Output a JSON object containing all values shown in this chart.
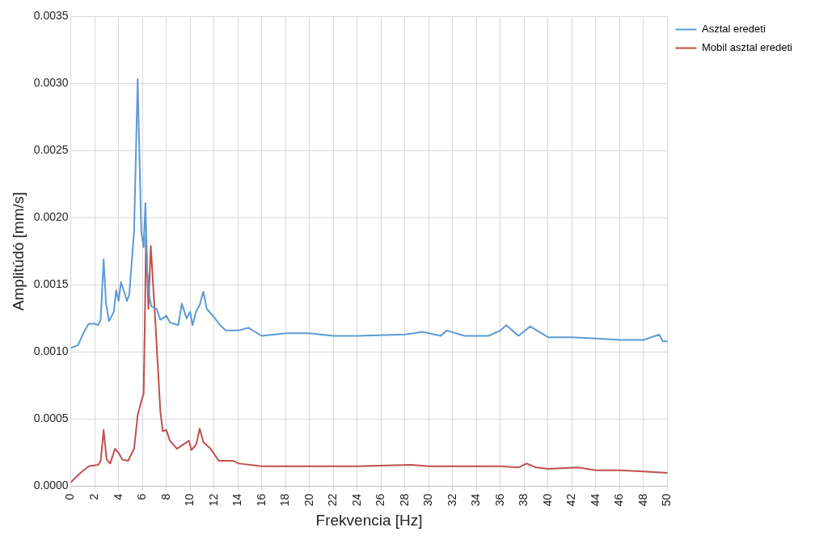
{
  "chart_data": {
    "type": "line",
    "xlabel": "Frekvencia [Hz]",
    "ylabel": "Amplitúdó [mm/s]",
    "xlim": [
      0,
      50
    ],
    "xticks": [
      0,
      2,
      4,
      6,
      8,
      10,
      12,
      14,
      16,
      18,
      20,
      22,
      24,
      26,
      28,
      30,
      32,
      34,
      36,
      38,
      40,
      42,
      44,
      46,
      48,
      50
    ],
    "ylim": [
      0,
      0.0035
    ],
    "yticks": [
      {
        "value": 0,
        "label": "0.0000"
      },
      {
        "value": 0.0005,
        "label": "0.0005"
      },
      {
        "value": 0.001,
        "label": "0.0010"
      },
      {
        "value": 0.0015,
        "label": "0.0015"
      },
      {
        "value": 0.002,
        "label": "0.0020"
      },
      {
        "value": 0.0025,
        "label": "0.0025"
      },
      {
        "value": 0.003,
        "label": "0.0030"
      },
      {
        "value": 0.0035,
        "label": "0.0035"
      }
    ],
    "grid": true,
    "legend": "right",
    "marker": "none",
    "line_style": "solid",
    "series": [
      {
        "name": "Asztal eredeti",
        "color": "#5b9bd5",
        "x": [
          0,
          0.6,
          1.1,
          1.5,
          2.0,
          2.3,
          2.5,
          2.75,
          2.95,
          3.2,
          3.6,
          3.8,
          4.0,
          4.2,
          4.5,
          4.7,
          4.9,
          5.3,
          5.6,
          5.9,
          6.1,
          6.25,
          6.4,
          6.6,
          6.75,
          7.2,
          7.5,
          8.0,
          8.3,
          9.0,
          9.3,
          9.7,
          10.0,
          10.2,
          10.5,
          10.8,
          11.1,
          11.4,
          12.0,
          12.5,
          13.0,
          14.0,
          14.9,
          16.0,
          18.0,
          20.0,
          22.0,
          24.0,
          28.0,
          29.5,
          31.0,
          31.5,
          33.0,
          35.0,
          36.0,
          36.5,
          37.5,
          38.5,
          40.0,
          42.0,
          44.0,
          46.0,
          48.0,
          49.3,
          49.6,
          50.0
        ],
        "values": [
          0.00103,
          0.00105,
          0.00115,
          0.00121,
          0.00121,
          0.0012,
          0.00124,
          0.00169,
          0.00136,
          0.00123,
          0.0013,
          0.00146,
          0.00138,
          0.00152,
          0.00144,
          0.00138,
          0.00143,
          0.0019,
          0.00303,
          0.0019,
          0.00178,
          0.00211,
          0.0016,
          0.0014,
          0.00134,
          0.00132,
          0.00124,
          0.00127,
          0.00122,
          0.0012,
          0.00136,
          0.00125,
          0.0013,
          0.0012,
          0.0013,
          0.00135,
          0.00145,
          0.00132,
          0.00126,
          0.0012,
          0.00116,
          0.00116,
          0.00118,
          0.00112,
          0.00114,
          0.00114,
          0.00112,
          0.00112,
          0.00113,
          0.00115,
          0.00112,
          0.00116,
          0.00112,
          0.00112,
          0.00116,
          0.0012,
          0.00112,
          0.00119,
          0.00111,
          0.00111,
          0.0011,
          0.00109,
          0.00109,
          0.00113,
          0.00108,
          0.00108
        ]
      },
      {
        "name": "Mobil asztal eredeti",
        "color": "#c0504d",
        "x": [
          0,
          0.8,
          1.5,
          2.3,
          2.5,
          2.75,
          3.0,
          3.3,
          3.7,
          4.0,
          4.3,
          4.8,
          5.3,
          5.6,
          5.9,
          6.1,
          6.2,
          6.3,
          6.5,
          6.7,
          7.1,
          7.5,
          7.7,
          8.0,
          8.3,
          8.9,
          9.9,
          10.1,
          10.5,
          10.8,
          11.1,
          11.7,
          12.4,
          13.6,
          14.1,
          16.0,
          20.0,
          24.0,
          28.5,
          30.0,
          34.0,
          36.0,
          37.5,
          38.2,
          39.0,
          40.0,
          42.5,
          44.0,
          46.0,
          48.0,
          50.0
        ],
        "values": [
          3e-05,
          0.0001,
          0.00015,
          0.00016,
          0.00019,
          0.00042,
          0.0002,
          0.00017,
          0.00028,
          0.00025,
          0.0002,
          0.00019,
          0.00028,
          0.00053,
          0.00063,
          0.00069,
          0.0012,
          0.00187,
          0.00132,
          0.00179,
          0.0012,
          0.00056,
          0.00041,
          0.00042,
          0.00034,
          0.00028,
          0.00034,
          0.00027,
          0.00031,
          0.00043,
          0.00033,
          0.00028,
          0.00019,
          0.00019,
          0.00017,
          0.00015,
          0.00015,
          0.00015,
          0.00016,
          0.00015,
          0.00015,
          0.00015,
          0.00014,
          0.00017,
          0.00014,
          0.00013,
          0.00014,
          0.00012,
          0.00012,
          0.00011,
          0.0001
        ]
      }
    ]
  }
}
